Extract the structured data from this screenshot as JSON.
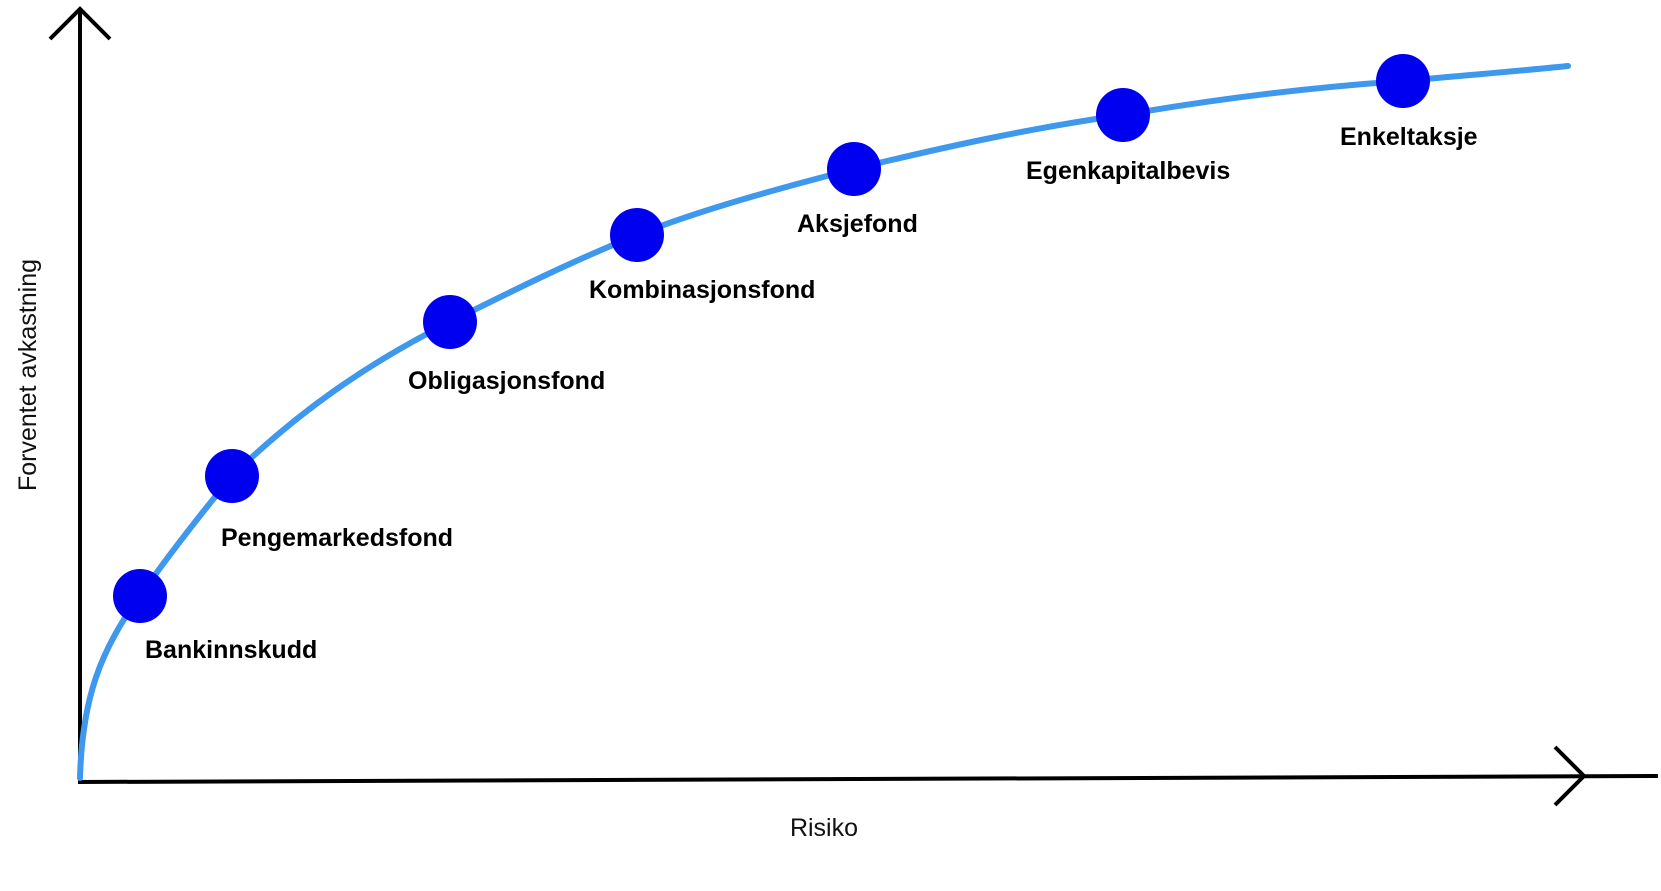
{
  "diagram": {
    "x_axis_label": "Risiko",
    "y_axis_label": "Forventet avkastning",
    "curve_color": "#3d98ee",
    "point_color": "#0000f0",
    "axis_color": "#000000",
    "points": [
      {
        "label": "Bankinnskudd"
      },
      {
        "label": "Pengemarkedsfond"
      },
      {
        "label": "Obligasjonsfond"
      },
      {
        "label": "Kombinasjonsfond"
      },
      {
        "label": "Aksjefond"
      },
      {
        "label": "Egenkapitalbevis"
      },
      {
        "label": "Enkeltaksje"
      }
    ]
  }
}
